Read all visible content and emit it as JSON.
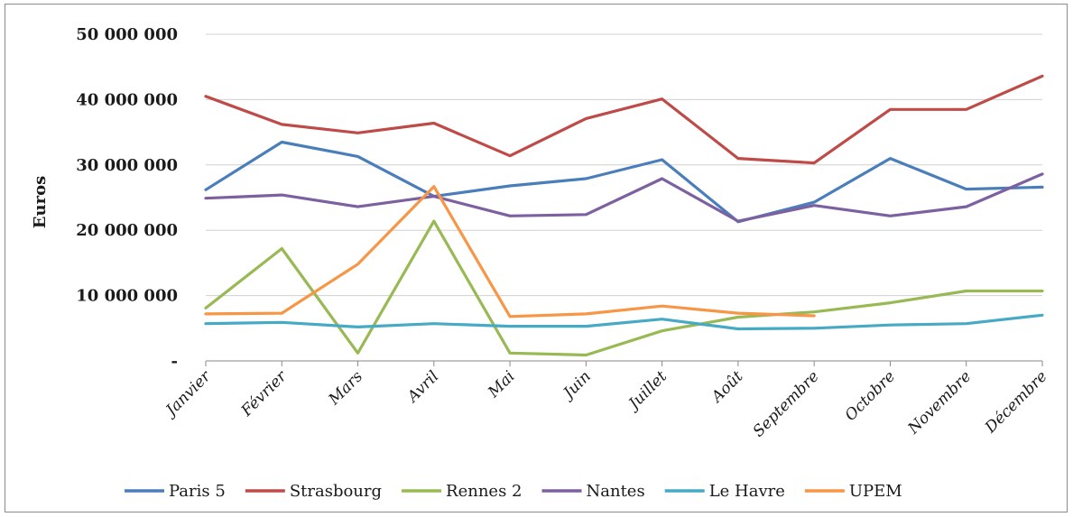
{
  "chart_data": {
    "type": "line",
    "title": "",
    "xlabel": "",
    "ylabel": "Euros",
    "ylim": [
      0,
      50000000
    ],
    "ytick_values": [
      0,
      10000000,
      20000000,
      30000000,
      40000000,
      50000000
    ],
    "ytick_labels": [
      "-",
      "10 000 000",
      "20 000 000",
      "30 000 000",
      "40 000 000",
      "50 000 000"
    ],
    "grid": "horizontal",
    "legend_position": "bottom",
    "categories": [
      "Janvier",
      "Février",
      "Mars",
      "Avril",
      "Mai",
      "Juin",
      "Juillet",
      "Août",
      "Septembre",
      "Octobre",
      "Novembre",
      "Décembre"
    ],
    "series": [
      {
        "name": "Paris 5",
        "color": "#4a7ebb",
        "values": [
          26200000,
          33500000,
          31300000,
          25200000,
          26800000,
          27900000,
          30800000,
          21300000,
          24300000,
          31000000,
          26300000,
          26600000
        ]
      },
      {
        "name": "Strasbourg",
        "color": "#be4b48",
        "values": [
          40500000,
          36200000,
          34900000,
          36400000,
          31400000,
          37100000,
          40100000,
          31000000,
          30300000,
          38500000,
          38500000,
          43600000
        ]
      },
      {
        "name": "Rennes 2",
        "color": "#98b954",
        "values": [
          8100000,
          17200000,
          1200000,
          21400000,
          1200000,
          900000,
          4600000,
          6700000,
          7500000,
          8900000,
          10700000,
          10700000
        ]
      },
      {
        "name": "Nantes",
        "color": "#7d60a0",
        "values": [
          24900000,
          25400000,
          23600000,
          25200000,
          22200000,
          22400000,
          27900000,
          21400000,
          23800000,
          22200000,
          23600000,
          28600000
        ]
      },
      {
        "name": "Le Havre",
        "color": "#46aac5",
        "values": [
          5700000,
          5900000,
          5200000,
          5700000,
          5300000,
          5300000,
          6400000,
          4900000,
          5000000,
          5500000,
          5700000,
          7000000
        ]
      },
      {
        "name": "UPEM",
        "color": "#f79646",
        "values": [
          7200000,
          7300000,
          14800000,
          26700000,
          6800000,
          7200000,
          8400000,
          7300000,
          6900000,
          null,
          null,
          null
        ]
      }
    ]
  }
}
